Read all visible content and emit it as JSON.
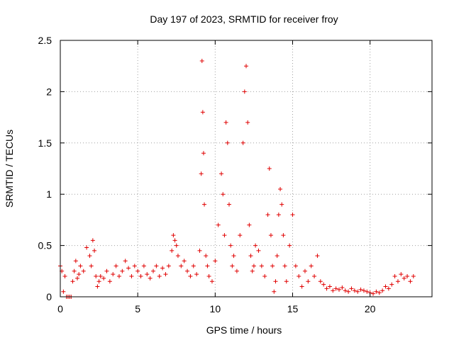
{
  "chart_data": {
    "type": "scatter",
    "title": "Day 197 of 2023, SRMTID for receiver froy",
    "xlabel": "GPS time / hours",
    "ylabel": "SRMTID / TECUs",
    "xlim": [
      0,
      24
    ],
    "ylim": [
      0,
      2.5
    ],
    "xticks": [
      0,
      5,
      10,
      15,
      20
    ],
    "xtick_labels": [
      "0",
      "5",
      "10",
      "15",
      "20"
    ],
    "yticks": [
      0,
      0.5,
      1,
      1.5,
      2,
      2.5
    ],
    "ytick_labels": [
      "0",
      "0.5",
      "1",
      "1.5",
      "2",
      "2.5"
    ],
    "grid": true,
    "marker": "+",
    "color": "#e00000",
    "series": [
      {
        "name": "SRMTID",
        "x": [
          0.0,
          0.1,
          0.2,
          0.3,
          0.4,
          0.5,
          0.6,
          0.7,
          0.8,
          0.9,
          1.0,
          1.1,
          1.2,
          1.3,
          1.5,
          1.7,
          1.9,
          2.0,
          2.1,
          2.2,
          2.3,
          2.4,
          2.5,
          2.6,
          2.8,
          3.0,
          3.2,
          3.4,
          3.6,
          3.8,
          4.0,
          4.2,
          4.4,
          4.6,
          4.8,
          5.0,
          5.2,
          5.4,
          5.6,
          5.8,
          6.0,
          6.2,
          6.4,
          6.6,
          6.8,
          7.0,
          7.2,
          7.3,
          7.4,
          7.5,
          7.6,
          7.8,
          8.0,
          8.2,
          8.4,
          8.6,
          8.8,
          9.0,
          9.1,
          9.15,
          9.2,
          9.25,
          9.3,
          9.4,
          9.5,
          9.6,
          9.8,
          10.0,
          10.2,
          10.4,
          10.5,
          10.6,
          10.7,
          10.8,
          10.9,
          11.0,
          11.1,
          11.2,
          11.4,
          11.6,
          11.8,
          11.9,
          12.0,
          12.1,
          12.2,
          12.3,
          12.4,
          12.5,
          12.6,
          12.8,
          13.0,
          13.2,
          13.4,
          13.5,
          13.6,
          13.7,
          13.8,
          13.9,
          14.0,
          14.1,
          14.2,
          14.3,
          14.4,
          14.5,
          14.6,
          14.8,
          15.0,
          15.2,
          15.4,
          15.6,
          15.8,
          16.0,
          16.2,
          16.4,
          16.6,
          16.8,
          17.0,
          17.2,
          17.4,
          17.6,
          17.8,
          18.0,
          18.2,
          18.4,
          18.6,
          18.8,
          19.0,
          19.2,
          19.4,
          19.6,
          19.8,
          20.0,
          20.2,
          20.4,
          20.6,
          20.8,
          21.0,
          21.2,
          21.4,
          21.6,
          21.8,
          22.0,
          22.2,
          22.4,
          22.6,
          22.8
        ],
        "y": [
          0.3,
          0.25,
          0.05,
          0.2,
          0.0,
          0.0,
          0.0,
          0.0,
          0.15,
          0.25,
          0.35,
          0.18,
          0.22,
          0.3,
          0.25,
          0.48,
          0.4,
          0.3,
          0.55,
          0.45,
          0.2,
          0.1,
          0.15,
          0.2,
          0.18,
          0.25,
          0.15,
          0.22,
          0.3,
          0.2,
          0.25,
          0.35,
          0.28,
          0.2,
          0.3,
          0.25,
          0.2,
          0.3,
          0.22,
          0.18,
          0.25,
          0.3,
          0.2,
          0.28,
          0.22,
          0.3,
          0.45,
          0.6,
          0.55,
          0.5,
          0.4,
          0.3,
          0.35,
          0.25,
          0.2,
          0.3,
          0.22,
          0.45,
          1.2,
          2.3,
          1.8,
          1.4,
          0.9,
          0.4,
          0.3,
          0.2,
          0.15,
          0.35,
          0.7,
          1.2,
          1.0,
          0.6,
          1.7,
          1.5,
          0.9,
          0.5,
          0.3,
          0.4,
          0.25,
          0.6,
          1.5,
          2.0,
          2.25,
          1.7,
          0.7,
          0.4,
          0.25,
          0.3,
          0.5,
          0.45,
          0.3,
          0.2,
          0.8,
          1.25,
          0.6,
          0.3,
          0.05,
          0.15,
          0.4,
          0.8,
          1.05,
          0.9,
          0.6,
          0.3,
          0.15,
          0.5,
          0.8,
          0.3,
          0.2,
          0.1,
          0.25,
          0.15,
          0.3,
          0.2,
          0.4,
          0.15,
          0.12,
          0.08,
          0.1,
          0.06,
          0.08,
          0.07,
          0.09,
          0.06,
          0.05,
          0.08,
          0.06,
          0.05,
          0.07,
          0.06,
          0.05,
          0.04,
          0.03,
          0.05,
          0.04,
          0.06,
          0.1,
          0.08,
          0.12,
          0.2,
          0.15,
          0.22,
          0.18,
          0.2,
          0.15,
          0.2
        ]
      }
    ]
  }
}
